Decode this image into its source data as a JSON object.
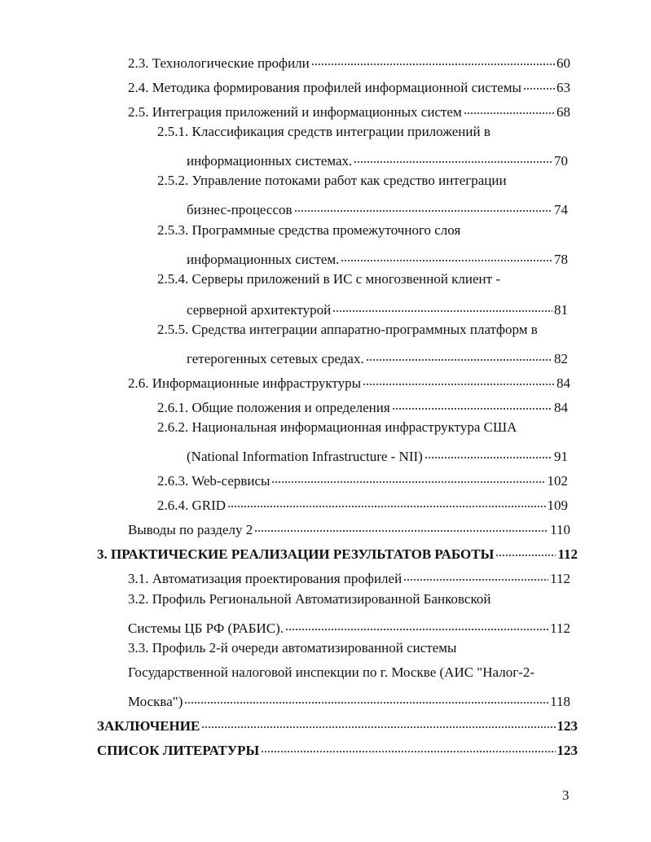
{
  "toc": [
    {
      "lines": [
        "2.3. Технологические профили"
      ],
      "page": "60"
    },
    {
      "lines": [
        "2.4. Методика формирования профилей информационной системы"
      ],
      "page": "63"
    },
    {
      "lines": [
        "2.5. Интеграция приложений и информационных систем"
      ],
      "page": "68"
    },
    {
      "lines": [
        "2.5.1. Классификация средств интеграции приложений в",
        "информационных системах."
      ],
      "page": "70"
    },
    {
      "lines": [
        "2.5.2. Управление потоками работ как средство интеграции",
        "бизнес-процессов"
      ],
      "page": "74"
    },
    {
      "lines": [
        "2.5.3. Программные средства промежуточного слоя",
        "информационных систем."
      ],
      "page": "78"
    },
    {
      "lines": [
        "2.5.4. Серверы приложений в ИС с многозвенной клиент -",
        "серверной архитектурой"
      ],
      "page": "81"
    },
    {
      "lines": [
        "2.5.5. Средства интеграции аппаратно-программных платформ в",
        "гетерогенных сетевых средах."
      ],
      "page": "82"
    },
    {
      "lines": [
        "2.6. Информационные инфраструктуры"
      ],
      "page": "84"
    },
    {
      "lines": [
        "2.6.1. Общие положения и определения"
      ],
      "page": "84"
    },
    {
      "lines": [
        "2.6.2. Национальная информационная инфраструктура США",
        "(National Information Infrastructure - NII)"
      ],
      "page": "91"
    },
    {
      "lines": [
        "2.6.3. Web-сервисы"
      ],
      "page": "102"
    },
    {
      "lines": [
        "2.6.4. GRID"
      ],
      "page": "109"
    },
    {
      "lines": [
        "Выводы по разделу 2"
      ],
      "page": "110"
    },
    {
      "lines": [
        "3. ПРАКТИЧЕСКИЕ РЕАЛИЗАЦИИ РЕЗУЛЬТАТОВ РАБОТЫ"
      ],
      "page": "112"
    },
    {
      "lines": [
        "3.1. Автоматизация проектирования профилей"
      ],
      "page": "112"
    },
    {
      "lines": [
        "3.2. Профиль Региональной Автоматизированной Банковской",
        "Системы ЦБ РФ (РАБИС)."
      ],
      "page": "112"
    },
    {
      "lines": [
        "3.3. Профиль 2-й очереди автоматизированной системы",
        "Государственной налоговой инспекции по г. Москве (АИС \"Налог-2-",
        "Москва\")"
      ],
      "page": "118"
    },
    {
      "lines": [
        "ЗАКЛЮЧЕНИЕ"
      ],
      "page": "123"
    },
    {
      "lines": [
        "СПИСОК ЛИТЕРАТУРЫ"
      ],
      "page": "123"
    }
  ],
  "page_number": "3"
}
